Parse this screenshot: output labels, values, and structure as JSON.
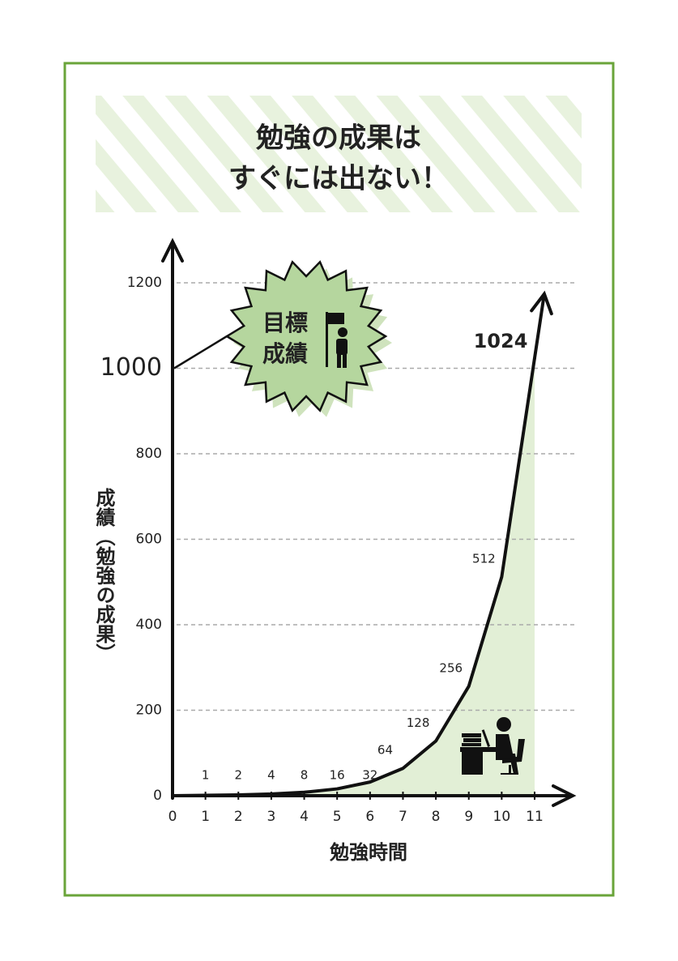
{
  "chart_data": {
    "type": "line",
    "title": [
      "勉強の成果は",
      "すぐには出ない！"
    ],
    "x_label": "勉強時間",
    "y_label": "成績（勉強の成果）",
    "x": [
      1,
      2,
      3,
      4,
      5,
      6,
      7,
      8,
      9,
      10,
      11
    ],
    "values": [
      1,
      2,
      4,
      8,
      16,
      32,
      64,
      128,
      256,
      512,
      1024
    ],
    "color": "#111111",
    "fill_color": "#e2efd6",
    "xlim": [
      0,
      11
    ],
    "ylim": [
      0,
      1200
    ],
    "xticks": [
      0,
      1,
      2,
      3,
      4,
      5,
      6,
      7,
      8,
      9,
      10,
      11
    ],
    "yticks": [
      0,
      200,
      400,
      600,
      800,
      1000,
      1200
    ],
    "grid": true,
    "annotation": {
      "text": [
        "目標",
        "成績"
      ],
      "value": 1000
    }
  }
}
